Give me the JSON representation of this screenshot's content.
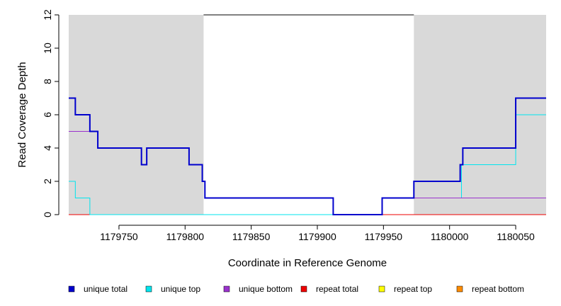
{
  "chart_data": {
    "type": "line",
    "title": "",
    "xlabel": "Coordinate in Reference Genome",
    "ylabel": "Read Coverage Depth",
    "xlim": [
      1179712,
      1180073
    ],
    "ylim": [
      0,
      12
    ],
    "x_ticks": [
      1179750,
      1179800,
      1179850,
      1179900,
      1179950,
      1180000,
      1180050
    ],
    "y_ticks": [
      0,
      2,
      4,
      6,
      8,
      10,
      12
    ],
    "background_shading": {
      "color": "#d9d9d9",
      "shaded_ranges": [
        [
          1179712,
          1179814
        ],
        [
          1179973,
          1180073
        ]
      ],
      "unshaded_range_top_line": [
        1179814,
        1179973
      ]
    },
    "legend_placement": "bottom",
    "series": [
      {
        "name": "unique total",
        "color": "#0000cd",
        "stroke_width": 2,
        "steps": [
          [
            1179712,
            7
          ],
          [
            1179717,
            6
          ],
          [
            1179728,
            5
          ],
          [
            1179734,
            4
          ],
          [
            1179767,
            3
          ],
          [
            1179771,
            4
          ],
          [
            1179803,
            3
          ],
          [
            1179813,
            2
          ],
          [
            1179815,
            1
          ],
          [
            1179912,
            0
          ],
          [
            1179949,
            1
          ],
          [
            1179973,
            2
          ],
          [
            1180008,
            3
          ],
          [
            1180010,
            4
          ],
          [
            1180050,
            7
          ],
          [
            1180073,
            7
          ]
        ]
      },
      {
        "name": "unique top",
        "color": "#00e5ee",
        "stroke_width": 1,
        "steps": [
          [
            1179712,
            2
          ],
          [
            1179717,
            1
          ],
          [
            1179728,
            0
          ],
          [
            1179949,
            1
          ],
          [
            1179973,
            1
          ],
          [
            1180009,
            3
          ],
          [
            1180050,
            6
          ],
          [
            1180073,
            6
          ]
        ]
      },
      {
        "name": "unique bottom",
        "color": "#9a32cd",
        "stroke_width": 1,
        "steps": [
          [
            1179712,
            5
          ],
          [
            1179734,
            4
          ],
          [
            1179767,
            3
          ],
          [
            1179771,
            4
          ],
          [
            1179803,
            3
          ],
          [
            1179813,
            2
          ],
          [
            1179815,
            1
          ],
          [
            1179912,
            0
          ],
          [
            1179949,
            1
          ],
          [
            1180073,
            1
          ]
        ]
      },
      {
        "name": "repeat total",
        "color": "#ee0000",
        "stroke_width": 1,
        "steps": [
          [
            1179712,
            0
          ],
          [
            1180073,
            0
          ]
        ]
      },
      {
        "name": "repeat top",
        "color": "#ffff00",
        "stroke_width": 1,
        "steps": [
          [
            1179712,
            0
          ],
          [
            1180073,
            0
          ]
        ]
      },
      {
        "name": "repeat bottom",
        "color": "#ff8c00",
        "stroke_width": 1,
        "steps": [
          [
            1179712,
            0
          ],
          [
            1180073,
            0
          ]
        ]
      }
    ]
  }
}
